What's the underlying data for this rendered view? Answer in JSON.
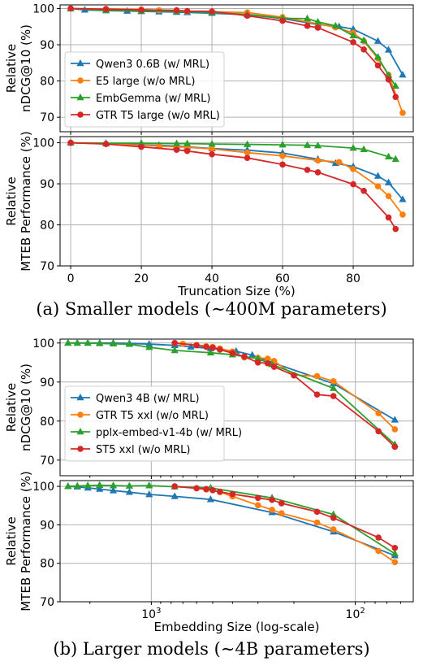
{
  "captions": {
    "a": "(a) Smaller models (∼400M parameters)",
    "b": "(b) Larger models (∼4B parameters)"
  },
  "chart_data": [
    {
      "type": "line",
      "ylabel": [
        "Relative",
        "nDCG@10 (%)"
      ],
      "xlim": [
        -3,
        97
      ],
      "ylim": [
        66,
        101
      ],
      "xscale": "linear",
      "yticks": [
        70,
        80,
        90,
        100
      ],
      "yticklabels": [
        "70",
        "80",
        "90",
        "100"
      ],
      "xticks": [
        0,
        20,
        40,
        60,
        80
      ],
      "grid": true,
      "legend": "center-left",
      "series": [
        {
          "name": "Qwen3 0.6B (w/ MRL)",
          "color": "#1f77b4",
          "marker": "triangle",
          "x": [
            0,
            4,
            10,
            16,
            20,
            25,
            30,
            33,
            40,
            50,
            60,
            70,
            76,
            80,
            87,
            90,
            94
          ],
          "y": [
            100,
            99.6,
            99.4,
            99.3,
            99.2,
            99.1,
            99.0,
            98.9,
            98.7,
            98.3,
            97.2,
            95.6,
            95.0,
            94.3,
            91.0,
            88.6,
            81.7
          ]
        },
        {
          "name": "E5 large (w/o MRL)",
          "color": "#ff7f0e",
          "marker": "circle",
          "x": [
            0,
            10,
            20,
            25,
            30,
            33,
            40,
            50,
            60,
            70,
            75,
            80,
            83,
            87,
            90,
            94
          ],
          "y": [
            100,
            99.9,
            99.7,
            99.5,
            99.4,
            99.2,
            99.1,
            98.9,
            97.6,
            95.8,
            94.8,
            93.3,
            91.0,
            86.2,
            81.7,
            71.2
          ]
        },
        {
          "name": "EmbGemma (w/ MRL)",
          "color": "#2ca02c",
          "marker": "triangle",
          "x": [
            0,
            10,
            20,
            30,
            40,
            50,
            60,
            67,
            70,
            75,
            80,
            83,
            87,
            90,
            92
          ],
          "y": [
            100,
            99.5,
            99.3,
            99.2,
            98.9,
            98.4,
            97.3,
            97.2,
            96.3,
            95.2,
            92.5,
            91.2,
            86.6,
            81.6,
            78.6
          ]
        },
        {
          "name": "GTR T5 large (w/o MRL)",
          "color": "#d62728",
          "marker": "circle",
          "x": [
            0,
            10,
            20,
            30,
            33,
            40,
            50,
            60,
            67,
            70,
            80,
            83,
            87,
            90,
            92
          ],
          "y": [
            100,
            99.8,
            99.6,
            99.5,
            99.3,
            99.2,
            98.0,
            96.6,
            95.2,
            94.7,
            90.7,
            88.7,
            84.3,
            80.4,
            75.6
          ]
        }
      ]
    },
    {
      "type": "line",
      "xlabel": "Truncation Size (%)",
      "ylabel": [
        "Relative",
        "MTEB Performance (%)"
      ],
      "xlim": [
        -3,
        97
      ],
      "ylim": [
        70,
        101.5
      ],
      "xscale": "linear",
      "yticks": [
        70,
        80,
        90,
        100
      ],
      "yticklabels": [
        "70",
        "80",
        "90",
        "100"
      ],
      "xticks": [
        0,
        20,
        40,
        60,
        80
      ],
      "xticklabels": [
        "0",
        "20",
        "40",
        "60",
        "80"
      ],
      "grid": true,
      "series": [
        {
          "name": "Qwen3 0.6B (w/ MRL)",
          "color": "#1f77b4",
          "marker": "triangle",
          "x": [
            0,
            10,
            20,
            25,
            30,
            33,
            40,
            50,
            60,
            70,
            75,
            80,
            87,
            90,
            94
          ],
          "y": [
            100,
            99.8,
            99.5,
            99.4,
            99.2,
            99.0,
            98.6,
            98.2,
            97.5,
            96.0,
            95.0,
            94.2,
            91.9,
            90.3,
            86.2
          ]
        },
        {
          "name": "E5 large (w/o MRL)",
          "color": "#ff7f0e",
          "marker": "circle",
          "x": [
            0,
            10,
            20,
            25,
            30,
            33,
            40,
            50,
            60,
            70,
            76,
            80,
            87,
            90,
            94
          ],
          "y": [
            100,
            99.7,
            99.4,
            99.2,
            99.0,
            98.9,
            98.5,
            97.6,
            96.8,
            95.7,
            95.3,
            93.6,
            89.4,
            87.0,
            82.5
          ]
        },
        {
          "name": "EmbGemma (w/ MRL)",
          "color": "#2ca02c",
          "marker": "triangle",
          "x": [
            0,
            10,
            20,
            30,
            33,
            40,
            50,
            60,
            67,
            70,
            80,
            83,
            90,
            92
          ],
          "y": [
            100,
            99.9,
            99.9,
            99.8,
            99.8,
            99.7,
            99.6,
            99.5,
            99.4,
            99.3,
            98.7,
            98.4,
            96.6,
            96.0
          ]
        },
        {
          "name": "GTR T5 large (w/o MRL)",
          "color": "#d62728",
          "marker": "circle",
          "x": [
            0,
            10,
            20,
            30,
            33,
            40,
            50,
            60,
            67,
            70,
            80,
            83,
            90,
            92
          ],
          "y": [
            100,
            99.7,
            99.0,
            98.3,
            98.0,
            97.2,
            96.3,
            94.7,
            93.4,
            92.8,
            89.9,
            88.3,
            81.8,
            79.0
          ]
        }
      ]
    },
    {
      "type": "line",
      "ylabel": [
        "Relative",
        "nDCG@10 (%)"
      ],
      "xscale": "log-reversed",
      "xlim": [
        2800,
        52
      ],
      "ylim": [
        66,
        101
      ],
      "yticks": [
        70,
        80,
        90,
        100
      ],
      "yticklabels": [
        "70",
        "80",
        "90",
        "100"
      ],
      "xticks": [
        1000,
        100
      ],
      "xminorticks": [
        2000,
        3000,
        900,
        800,
        700,
        600,
        500,
        400,
        300,
        200,
        90,
        80,
        70,
        60
      ],
      "grid": true,
      "legend": "center-left",
      "series": [
        {
          "name": "Qwen3 4B (w/ MRL)",
          "color": "#1f77b4",
          "marker": "triangle",
          "x": [
            2560,
            2304,
            2048,
            1792,
            1536,
            1280,
            1024,
            768,
            640,
            512,
            384,
            320,
            256,
            128,
            64
          ],
          "y": [
            100,
            100,
            100,
            100,
            100,
            99.9,
            99.7,
            99.4,
            99.0,
            98.6,
            97.9,
            96.9,
            95.0,
            89.6,
            80.3
          ]
        },
        {
          "name": "GTR T5 xxl (w/o MRL)",
          "color": "#ff7f0e",
          "marker": "circle",
          "x": [
            768,
            700,
            600,
            538,
            500,
            461,
            400,
            350,
            300,
            269,
            250,
            200,
            154,
            128,
            77,
            64
          ],
          "y": [
            100,
            99.8,
            99.5,
            99.2,
            99.0,
            98.6,
            97.8,
            96.3,
            96.2,
            96.0,
            95.4,
            91.8,
            91.5,
            90.2,
            82.0,
            77.9
          ]
        },
        {
          "name": "pplx-embed-v1-4b (w/ MRL)",
          "color": "#2ca02c",
          "marker": "triangle",
          "x": [
            2560,
            2304,
            2048,
            1792,
            1536,
            1280,
            1024,
            768,
            512,
            400,
            300,
            256,
            128,
            64
          ],
          "y": [
            100,
            100,
            100,
            99.9,
            99.8,
            99.7,
            98.9,
            98.1,
            97.5,
            97.0,
            96.0,
            94.5,
            88.4,
            74.0
          ]
        },
        {
          "name": "ST5 xxl (w/o MRL)",
          "color": "#d62728",
          "marker": "circle",
          "x": [
            768,
            600,
            538,
            500,
            461,
            400,
            350,
            300,
            269,
            250,
            200,
            154,
            128,
            77,
            64
          ],
          "y": [
            100,
            99.4,
            99.0,
            98.8,
            98.3,
            97.4,
            96.5,
            95.0,
            94.8,
            93.9,
            91.7,
            86.8,
            86.4,
            77.4,
            73.4
          ]
        }
      ]
    },
    {
      "type": "line",
      "xlabel": "Embedding Size (log-scale)",
      "ylabel": [
        "Relative",
        "MTEB Performance (%)"
      ],
      "xscale": "log-reversed",
      "xlim": [
        2800,
        52
      ],
      "ylim": [
        70,
        101.5
      ],
      "yticks": [
        70,
        80,
        90,
        100
      ],
      "yticklabels": [
        "70",
        "80",
        "90",
        "100"
      ],
      "xticks": [
        1000,
        100
      ],
      "xticklabels": [
        "10^3",
        "10^2"
      ],
      "xminorticks": [
        2000,
        3000,
        900,
        800,
        700,
        600,
        500,
        400,
        300,
        200,
        90,
        80,
        70,
        60
      ],
      "grid": true,
      "series": [
        {
          "name": "Qwen3 4B (w/ MRL)",
          "color": "#1f77b4",
          "marker": "triangle",
          "x": [
            2560,
            2304,
            2048,
            1792,
            1536,
            1280,
            1024,
            768,
            512,
            256,
            128,
            64
          ],
          "y": [
            100,
            99.9,
            99.6,
            99.3,
            98.9,
            98.5,
            97.9,
            97.4,
            96.6,
            93.2,
            88.2,
            82.0
          ]
        },
        {
          "name": "GTR T5 xxl (w/o MRL)",
          "color": "#ff7f0e",
          "marker": "circle",
          "x": [
            768,
            600,
            538,
            500,
            461,
            400,
            300,
            256,
            230,
            154,
            128,
            77,
            64
          ],
          "y": [
            100,
            99.5,
            99.2,
            99.0,
            98.5,
            97.4,
            95.1,
            93.9,
            93.0,
            90.6,
            88.8,
            83.2,
            80.3
          ]
        },
        {
          "name": "pplx-embed-v1-4b (w/ MRL)",
          "color": "#2ca02c",
          "marker": "triangle",
          "x": [
            2560,
            2304,
            2048,
            1792,
            1536,
            1280,
            1024,
            768,
            512,
            256,
            128,
            64
          ],
          "y": [
            100,
            100.1,
            100.2,
            100.3,
            100.2,
            100.1,
            100.2,
            99.9,
            99.6,
            97.0,
            92.7,
            82.5
          ]
        },
        {
          "name": "ST5 xxl (w/o MRL)",
          "color": "#d62728",
          "marker": "circle",
          "x": [
            768,
            600,
            538,
            500,
            461,
            400,
            300,
            256,
            230,
            154,
            128,
            77,
            64
          ],
          "y": [
            100,
            99.5,
            99.3,
            99.0,
            98.6,
            98.0,
            97.0,
            96.5,
            95.6,
            93.4,
            91.8,
            86.7,
            84.0
          ]
        }
      ]
    }
  ]
}
